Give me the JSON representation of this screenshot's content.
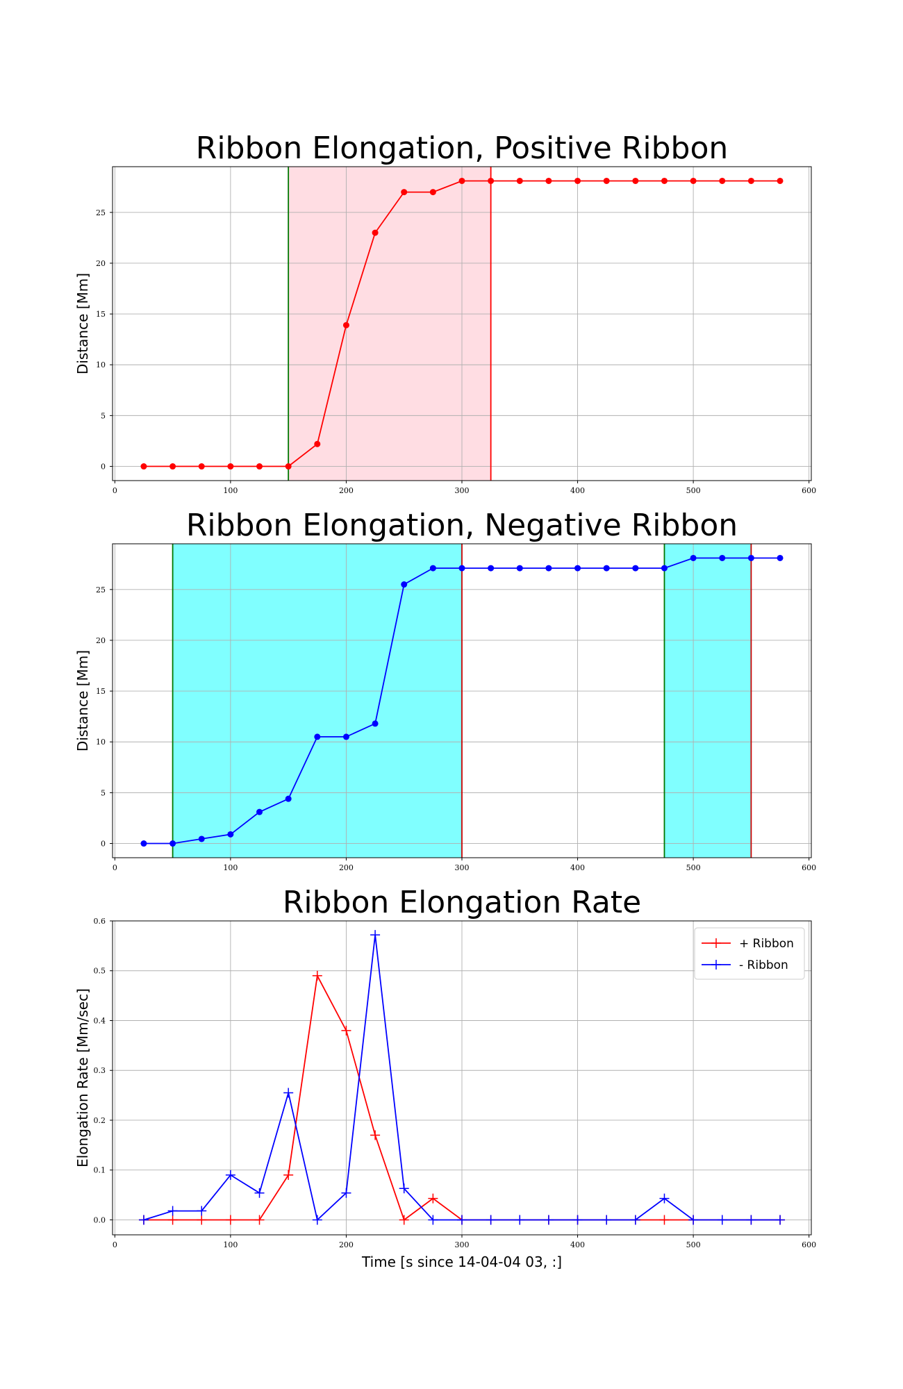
{
  "chart_data": [
    {
      "type": "line",
      "title": "Ribbon Elongation, Positive Ribbon",
      "xlabel": "",
      "ylabel": "Distance [Mm]",
      "xlim": [
        -2,
        602
      ],
      "ylim": [
        -1.4,
        29.5
      ],
      "xticks": [
        0,
        100,
        200,
        300,
        400,
        500,
        600
      ],
      "yticks": [
        0,
        5,
        10,
        15,
        20,
        25
      ],
      "grid": true,
      "marker": "circle",
      "series": [
        {
          "color": "#ff0000",
          "x": [
            25,
            50,
            75,
            100,
            125,
            150,
            175,
            200,
            225,
            250,
            275,
            300,
            325,
            350,
            375,
            400,
            425,
            450,
            475,
            500,
            525,
            550,
            575
          ],
          "values": [
            0,
            0,
            0,
            0,
            0,
            0,
            2.2,
            13.9,
            23.0,
            27.0,
            27.0,
            28.1,
            28.1,
            28.1,
            28.1,
            28.1,
            28.1,
            28.1,
            28.1,
            28.1,
            28.1,
            28.1,
            28.1
          ]
        }
      ],
      "shaded_regions": [
        {
          "x0": 150,
          "x1": 325,
          "fill": "#ffdde3",
          "start_color": "#007700",
          "end_color": "#ff0000"
        }
      ]
    },
    {
      "type": "line",
      "title": "Ribbon Elongation, Negative Ribbon",
      "xlabel": "",
      "ylabel": "Distance [Mm]",
      "xlim": [
        -2,
        602
      ],
      "ylim": [
        -1.4,
        29.5
      ],
      "xticks": [
        0,
        100,
        200,
        300,
        400,
        500,
        600
      ],
      "yticks": [
        0,
        5,
        10,
        15,
        20,
        25
      ],
      "grid": true,
      "marker": "circle",
      "series": [
        {
          "color": "#0000ff",
          "x": [
            25,
            50,
            75,
            100,
            125,
            150,
            175,
            200,
            225,
            250,
            275,
            300,
            325,
            350,
            375,
            400,
            425,
            450,
            475,
            500,
            525,
            550,
            575
          ],
          "values": [
            0,
            0,
            0.45,
            0.9,
            3.1,
            4.4,
            10.5,
            10.5,
            11.8,
            25.5,
            27.1,
            27.1,
            27.1,
            27.1,
            27.1,
            27.1,
            27.1,
            27.1,
            27.1,
            28.1,
            28.1,
            28.1,
            28.1
          ]
        }
      ],
      "shaded_regions": [
        {
          "x0": 50,
          "x1": 300,
          "fill": "#80ffff",
          "start_color": "#007700",
          "end_color": "#cc0000"
        },
        {
          "x0": 475,
          "x1": 550,
          "fill": "#80ffff",
          "start_color": "#007700",
          "end_color": "#cc0000"
        }
      ]
    },
    {
      "type": "line",
      "title": "Ribbon Elongation Rate",
      "xlabel": "Time [s since 14-04-04 03, :]",
      "ylabel": "Elongation Rate [Mm/sec]",
      "xlim": [
        -2,
        602
      ],
      "ylim": [
        -0.03,
        0.6
      ],
      "xticks": [
        0,
        100,
        200,
        300,
        400,
        500,
        600
      ],
      "yticks": [
        0.0,
        0.1,
        0.2,
        0.3,
        0.4,
        0.5,
        0.6
      ],
      "grid": true,
      "marker": "plus",
      "legend": "top-right",
      "series": [
        {
          "name": "+ Ribbon",
          "color": "#ff0000",
          "x": [
            25,
            50,
            75,
            100,
            125,
            150,
            175,
            200,
            225,
            250,
            275,
            300,
            325,
            350,
            375,
            400,
            425,
            450,
            475,
            500,
            525,
            550,
            575
          ],
          "values": [
            0,
            0,
            0,
            0,
            0,
            0.09,
            0.49,
            0.38,
            0.17,
            0,
            0.043,
            0,
            0,
            0,
            0,
            0,
            0,
            0,
            0,
            0,
            0,
            0,
            0
          ]
        },
        {
          "name": "- Ribbon",
          "color": "#0000ff",
          "x": [
            25,
            50,
            75,
            100,
            125,
            150,
            175,
            200,
            225,
            250,
            275,
            300,
            325,
            350,
            375,
            400,
            425,
            450,
            475,
            500,
            525,
            550,
            575
          ],
          "values": [
            0,
            0.018,
            0.018,
            0.09,
            0.054,
            0.255,
            0,
            0.054,
            0.572,
            0.063,
            0,
            0,
            0,
            0,
            0,
            0,
            0,
            0,
            0.043,
            0,
            0,
            0,
            0
          ]
        }
      ]
    }
  ]
}
